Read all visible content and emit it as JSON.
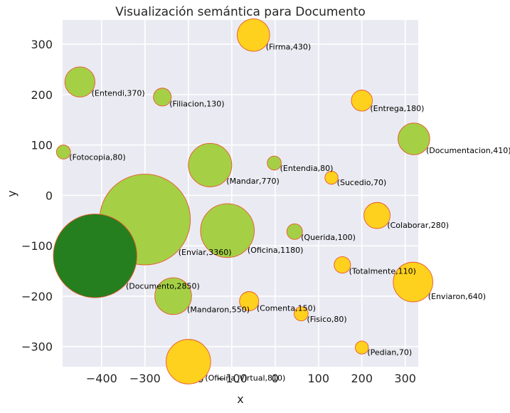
{
  "chart_data": {
    "type": "scatter",
    "title": "Visualización semántica para Documento",
    "xlabel": "x",
    "ylabel": "y",
    "xlim": [
      -490,
      330
    ],
    "ylim": [
      -340,
      348
    ],
    "xticks": [
      -400,
      -300,
      -200,
      -100,
      0,
      100,
      200,
      300
    ],
    "yticks": [
      -300,
      -200,
      -100,
      0,
      100,
      200,
      300
    ],
    "grid": true,
    "background": "#eaeaf2",
    "bubble_outline": "#e8572a",
    "colors": {
      "yellow": "#ffd11f",
      "lightgreen": "#a5d046",
      "darkgreen": "#267f1f"
    },
    "points": [
      {
        "word": "Firma",
        "value": 430,
        "x": -50,
        "y": 318,
        "color": "yellow"
      },
      {
        "word": "Entendi",
        "value": 370,
        "x": -450,
        "y": 225,
        "color": "lightgreen"
      },
      {
        "word": "Filiacion",
        "value": 130,
        "x": -260,
        "y": 195,
        "color": "lightgreen"
      },
      {
        "word": "Entrega",
        "value": 180,
        "x": 200,
        "y": 188,
        "color": "yellow"
      },
      {
        "word": "Documentacion",
        "value": 410,
        "x": 320,
        "y": 112,
        "color": "lightgreen"
      },
      {
        "word": "Fotocopia",
        "value": 80,
        "x": -488,
        "y": 86,
        "color": "lightgreen"
      },
      {
        "word": "Mandar",
        "value": 770,
        "x": -150,
        "y": 60,
        "color": "lightgreen"
      },
      {
        "word": "Entendia",
        "value": 80,
        "x": -2,
        "y": 64,
        "color": "lightgreen"
      },
      {
        "word": "Sucedio",
        "value": 70,
        "x": 130,
        "y": 35,
        "color": "yellow"
      },
      {
        "word": "Colaborar",
        "value": 280,
        "x": 235,
        "y": -40,
        "color": "yellow"
      },
      {
        "word": "Enviar",
        "value": 3360,
        "x": -300,
        "y": -48,
        "color": "lightgreen"
      },
      {
        "word": "Oficina",
        "value": 1180,
        "x": -110,
        "y": -70,
        "color": "lightgreen"
      },
      {
        "word": "Querida",
        "value": 100,
        "x": 45,
        "y": -72,
        "color": "lightgreen"
      },
      {
        "word": "Documento",
        "value": 2850,
        "x": -415,
        "y": -120,
        "color": "darkgreen"
      },
      {
        "word": "Totalmente",
        "value": 110,
        "x": 155,
        "y": -138,
        "color": "yellow"
      },
      {
        "word": "Enviaron",
        "value": 640,
        "x": 318,
        "y": -172,
        "color": "yellow"
      },
      {
        "word": "Mandaron",
        "value": 550,
        "x": -235,
        "y": -200,
        "color": "lightgreen"
      },
      {
        "word": "Comenta",
        "value": 150,
        "x": -60,
        "y": -210,
        "color": "yellow"
      },
      {
        "word": "Fisico",
        "value": 80,
        "x": 60,
        "y": -235,
        "color": "yellow"
      },
      {
        "word": "Pedian",
        "value": 70,
        "x": 200,
        "y": -302,
        "color": "yellow"
      },
      {
        "word": "Oficina_Virtual",
        "value": 810,
        "x": -200,
        "y": -330,
        "color": "yellow"
      }
    ]
  }
}
